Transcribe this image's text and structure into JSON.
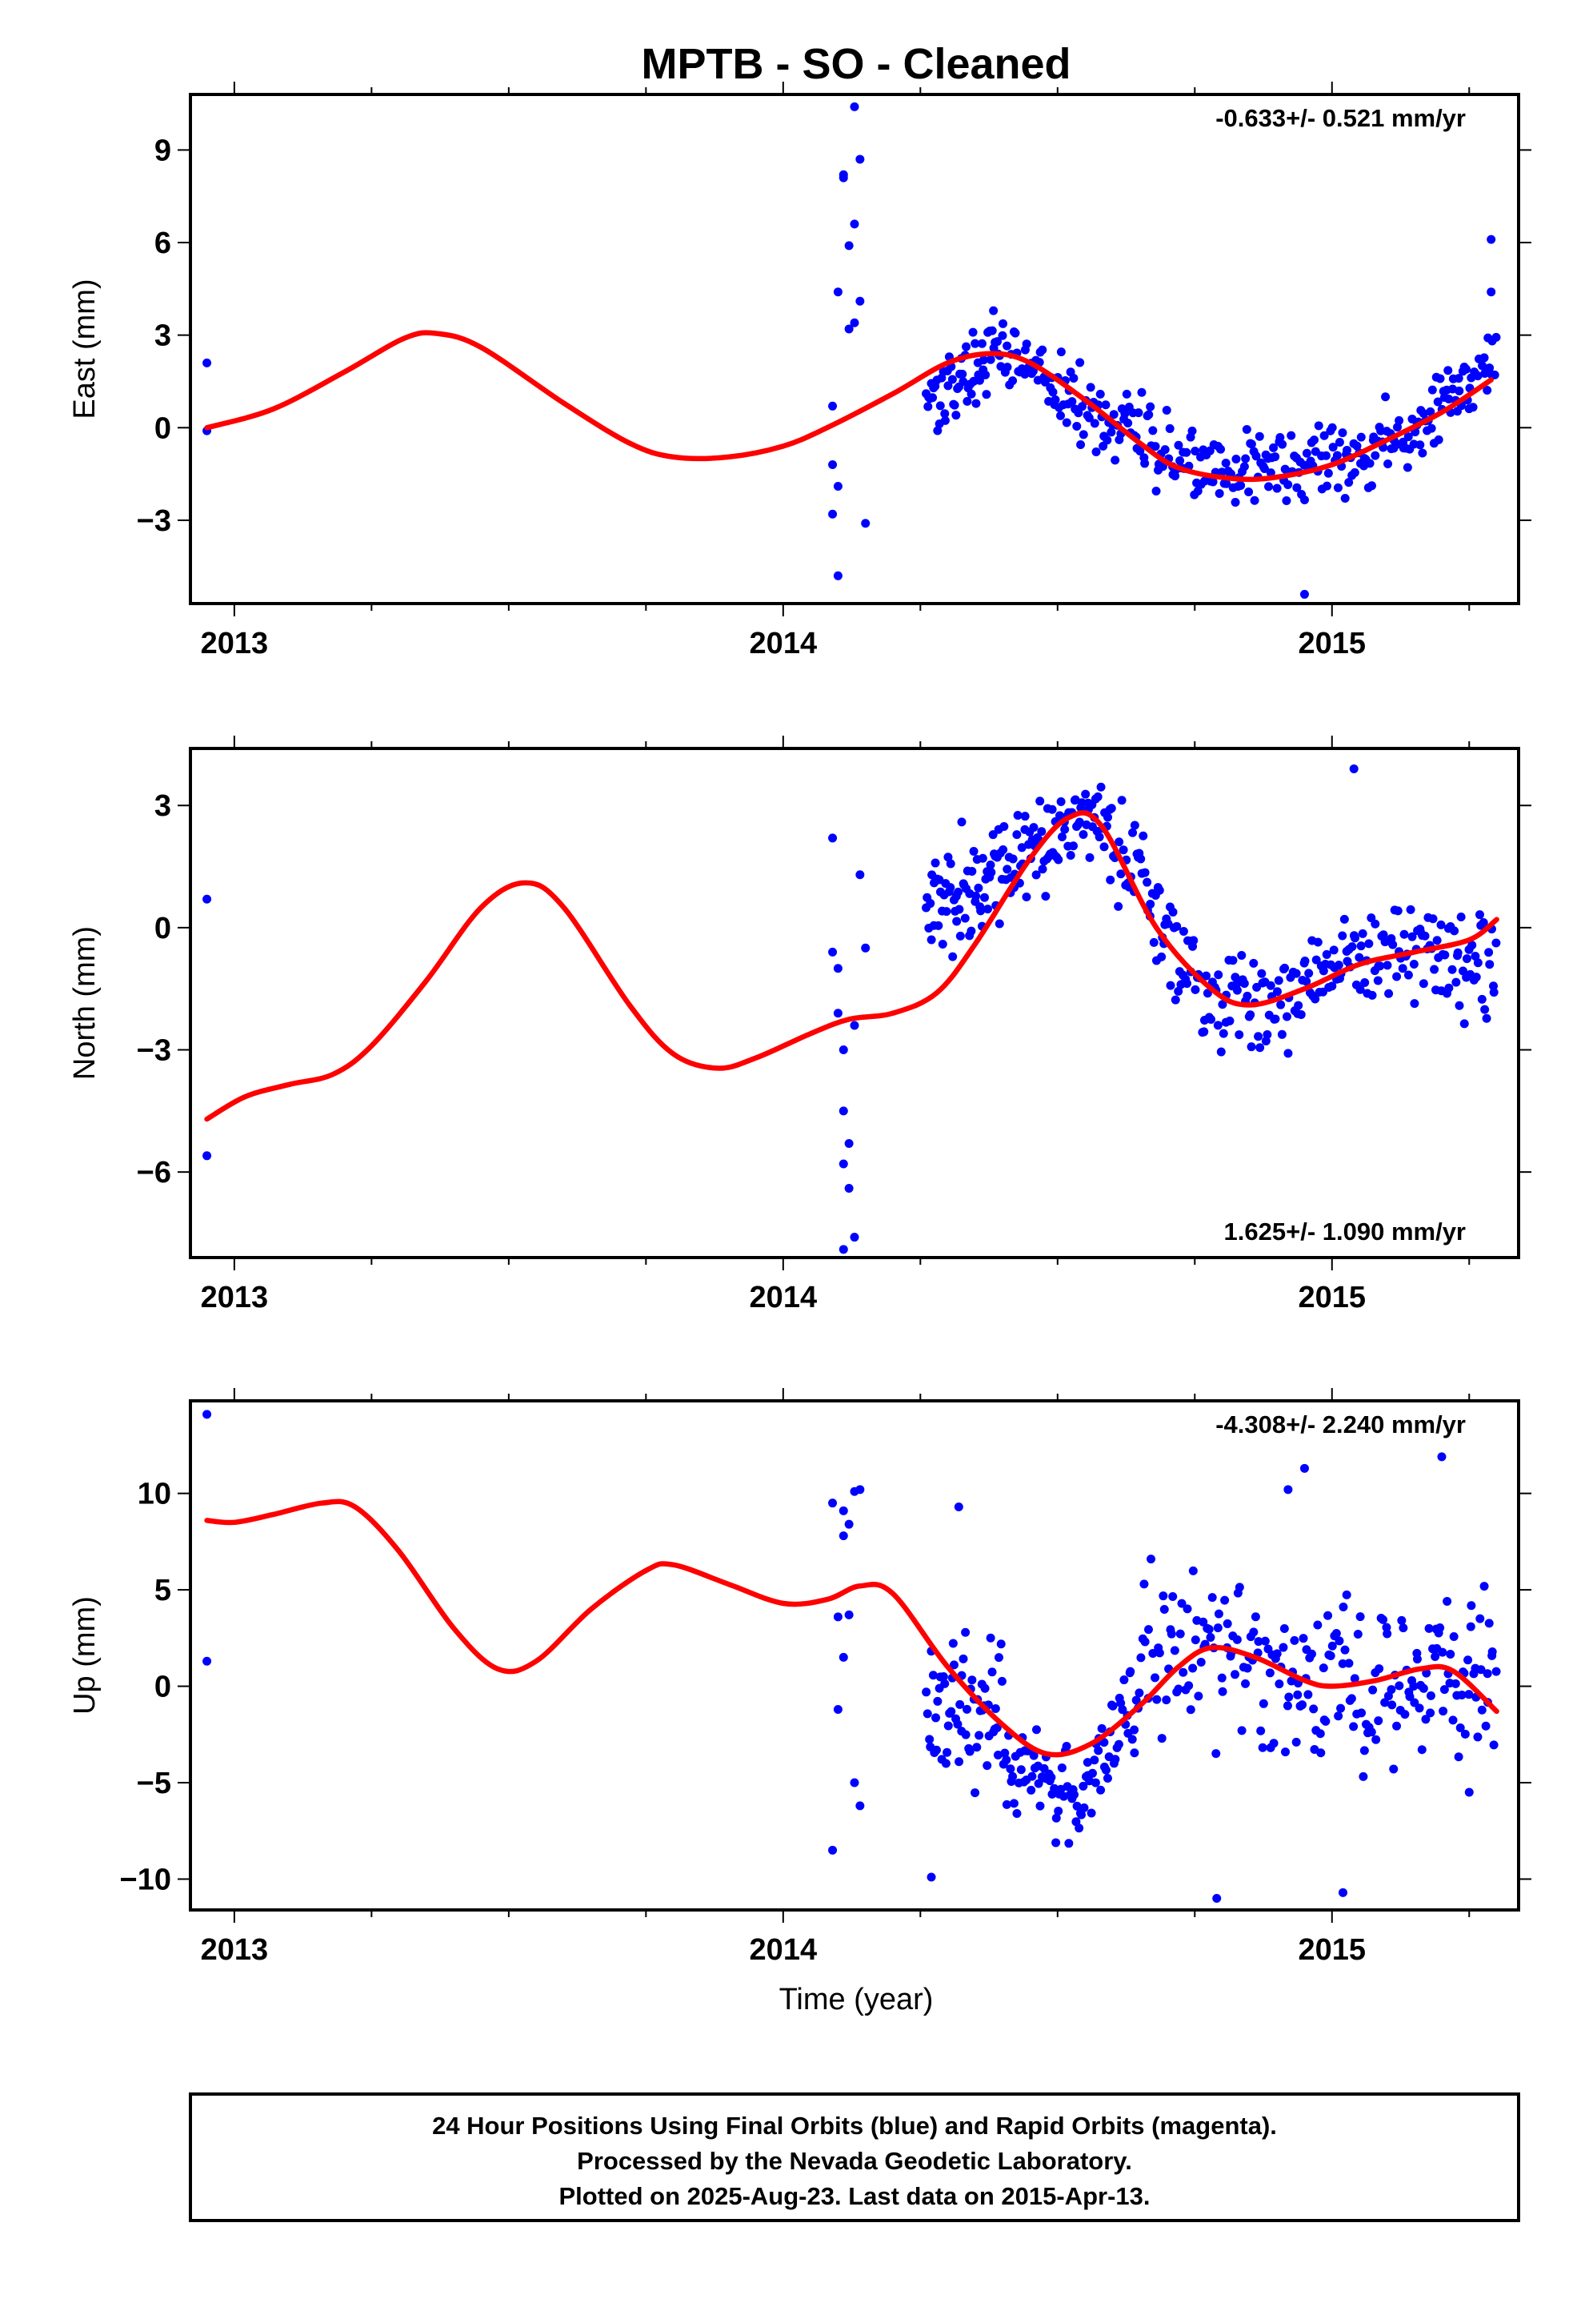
{
  "title": "MPTB  - SO - Cleaned",
  "colors": {
    "data": "#0000ff",
    "fit": "#ff0000",
    "frame": "#000000"
  },
  "xlabel": "Time (year)",
  "footer": {
    "line1": "24 Hour Positions Using Final Orbits (blue) and Rapid Orbits (magenta).",
    "line2": "Processed by the Nevada Geodetic Laboratory.",
    "line3": "Plotted on 2025-Aug-23. Last data on 2015-Apr-13."
  },
  "chart_data": [
    {
      "type": "scatter",
      "name": "east",
      "ylabel": "East (mm)",
      "rate": "-0.633+/- 0.521 mm/yr",
      "rate_position": "top-right",
      "xlim": [
        2012.92,
        2015.34
      ],
      "ylim": [
        -5.7,
        10.8
      ],
      "x_ticks": [
        2013,
        2014,
        2015
      ],
      "x_tick_labels": [
        "2013",
        "2014",
        "2015"
      ],
      "y_ticks": [
        9,
        6,
        3,
        0,
        -3
      ],
      "y_tick_labels": [
        "9",
        "6",
        "3",
        "0",
        "−3"
      ],
      "outliers": [
        [
          2012.95,
          2.1
        ],
        [
          2012.95,
          -0.1
        ],
        [
          2014.09,
          0.7
        ],
        [
          2014.09,
          -1.2
        ],
        [
          2014.1,
          -1.9
        ],
        [
          2014.09,
          -2.8
        ],
        [
          2014.1,
          -4.8
        ],
        [
          2014.1,
          4.4
        ],
        [
          2014.11,
          8.1
        ],
        [
          2014.11,
          8.2
        ],
        [
          2014.12,
          5.9
        ],
        [
          2014.12,
          3.2
        ],
        [
          2014.13,
          3.4
        ],
        [
          2014.13,
          6.6
        ],
        [
          2014.14,
          8.7
        ],
        [
          2014.13,
          10.4
        ],
        [
          2014.14,
          4.1
        ],
        [
          2014.15,
          -3.1
        ],
        [
          2015.29,
          6.1
        ],
        [
          2015.29,
          4.4
        ],
        [
          2014.95,
          -5.4
        ]
      ],
      "fit_knots": [
        [
          2012.95,
          0.0
        ],
        [
          2013.07,
          0.6
        ],
        [
          2013.2,
          1.8
        ],
        [
          2013.31,
          2.9
        ],
        [
          2013.37,
          3.05
        ],
        [
          2013.45,
          2.6
        ],
        [
          2013.6,
          0.8
        ],
        [
          2013.72,
          -0.5
        ],
        [
          2013.8,
          -0.95
        ],
        [
          2013.9,
          -0.95
        ],
        [
          2014.0,
          -0.6
        ],
        [
          2014.08,
          0.0
        ],
        [
          2014.2,
          1.1
        ],
        [
          2014.3,
          2.1
        ],
        [
          2014.38,
          2.4
        ],
        [
          2014.45,
          2.1
        ],
        [
          2014.55,
          0.9
        ],
        [
          2014.65,
          -0.5
        ],
        [
          2014.72,
          -1.3
        ],
        [
          2014.82,
          -1.65
        ],
        [
          2014.9,
          -1.6
        ],
        [
          2015.0,
          -1.2
        ],
        [
          2015.1,
          -0.4
        ],
        [
          2015.2,
          0.5
        ],
        [
          2015.29,
          1.55
        ]
      ],
      "dense_segments": [
        {
          "x0": 2014.26,
          "x1": 2014.4,
          "from": 1.0,
          "to": 2.6,
          "spread": 1.2,
          "n": 60
        },
        {
          "x0": 2014.4,
          "x1": 2014.55,
          "from": 2.6,
          "to": 0.6,
          "spread": 1.1,
          "n": 55
        },
        {
          "x0": 2014.55,
          "x1": 2014.75,
          "from": 0.6,
          "to": -1.3,
          "spread": 1.2,
          "n": 70
        },
        {
          "x0": 2014.75,
          "x1": 2014.95,
          "from": -1.3,
          "to": -1.4,
          "spread": 1.1,
          "n": 70
        },
        {
          "x0": 2014.95,
          "x1": 2015.15,
          "from": -1.4,
          "to": -0.2,
          "spread": 1.1,
          "n": 70
        },
        {
          "x0": 2015.15,
          "x1": 2015.3,
          "from": -0.2,
          "to": 2.4,
          "spread": 1.1,
          "n": 55
        }
      ]
    },
    {
      "type": "scatter",
      "name": "north",
      "ylabel": "North (mm)",
      "rate": "1.625+/- 1.090 mm/yr",
      "rate_position": "bottom-right",
      "xlim": [
        2012.92,
        2015.34
      ],
      "ylim": [
        -8.1,
        4.4
      ],
      "x_ticks": [
        2013,
        2014,
        2015
      ],
      "x_tick_labels": [
        "2013",
        "2014",
        "2015"
      ],
      "y_ticks": [
        3,
        0,
        -3,
        -6
      ],
      "y_tick_labels": [
        "3",
        "0",
        "−3",
        "−6"
      ],
      "outliers": [
        [
          2012.95,
          0.7
        ],
        [
          2012.95,
          -5.6
        ],
        [
          2014.09,
          2.2
        ],
        [
          2014.09,
          -0.6
        ],
        [
          2014.1,
          -1.0
        ],
        [
          2014.1,
          -2.1
        ],
        [
          2014.11,
          -3.0
        ],
        [
          2014.11,
          -4.5
        ],
        [
          2014.12,
          -5.3
        ],
        [
          2014.11,
          -5.8
        ],
        [
          2014.12,
          -6.4
        ],
        [
          2014.11,
          -7.9
        ],
        [
          2014.13,
          -7.6
        ],
        [
          2014.13,
          -2.4
        ],
        [
          2014.14,
          1.3
        ],
        [
          2014.15,
          -0.5
        ],
        [
          2015.04,
          3.9
        ]
      ],
      "fit_knots": [
        [
          2012.95,
          -4.7
        ],
        [
          2013.02,
          -4.15
        ],
        [
          2013.1,
          -3.85
        ],
        [
          2013.18,
          -3.6
        ],
        [
          2013.25,
          -2.9
        ],
        [
          2013.35,
          -1.3
        ],
        [
          2013.45,
          0.5
        ],
        [
          2013.53,
          1.1
        ],
        [
          2013.6,
          0.5
        ],
        [
          2013.72,
          -1.9
        ],
        [
          2013.8,
          -3.1
        ],
        [
          2013.88,
          -3.45
        ],
        [
          2013.95,
          -3.2
        ],
        [
          2014.05,
          -2.6
        ],
        [
          2014.12,
          -2.25
        ],
        [
          2014.2,
          -2.1
        ],
        [
          2014.28,
          -1.6
        ],
        [
          2014.35,
          -0.4
        ],
        [
          2014.45,
          1.7
        ],
        [
          2014.52,
          2.7
        ],
        [
          2014.58,
          2.5
        ],
        [
          2014.68,
          0.0
        ],
        [
          2014.78,
          -1.5
        ],
        [
          2014.85,
          -1.9
        ],
        [
          2014.95,
          -1.5
        ],
        [
          2015.05,
          -0.9
        ],
        [
          2015.15,
          -0.6
        ],
        [
          2015.25,
          -0.3
        ],
        [
          2015.3,
          0.2
        ]
      ],
      "dense_segments": [
        {
          "x0": 2014.26,
          "x1": 2014.4,
          "from": 0.3,
          "to": 1.5,
          "spread": 1.3,
          "n": 65
        },
        {
          "x0": 2014.4,
          "x1": 2014.58,
          "from": 1.5,
          "to": 3.0,
          "spread": 1.0,
          "n": 75
        },
        {
          "x0": 2014.58,
          "x1": 2014.75,
          "from": 2.5,
          "to": -1.0,
          "spread": 1.2,
          "n": 65
        },
        {
          "x0": 2014.75,
          "x1": 2014.95,
          "from": -1.5,
          "to": -1.7,
          "spread": 1.1,
          "n": 70
        },
        {
          "x0": 2014.95,
          "x1": 2015.15,
          "from": -1.2,
          "to": -0.3,
          "spread": 1.1,
          "n": 70
        },
        {
          "x0": 2015.15,
          "x1": 2015.3,
          "from": -0.6,
          "to": -1.2,
          "spread": 1.2,
          "n": 55
        }
      ]
    },
    {
      "type": "scatter",
      "name": "up",
      "ylabel": "Up (mm)",
      "rate": "-4.308+/- 2.240 mm/yr",
      "rate_position": "top-right",
      "xlim": [
        2012.92,
        2015.34
      ],
      "ylim": [
        -11.6,
        14.8
      ],
      "x_ticks": [
        2013,
        2014,
        2015
      ],
      "x_tick_labels": [
        "2013",
        "2014",
        "2015"
      ],
      "y_ticks": [
        10,
        5,
        0,
        -5,
        -10
      ],
      "y_tick_labels": [
        "10",
        "5",
        "0",
        "−5",
        "−10"
      ],
      "outliers": [
        [
          2012.95,
          14.1
        ],
        [
          2012.95,
          1.3
        ],
        [
          2014.09,
          9.5
        ],
        [
          2014.09,
          -8.5
        ],
        [
          2014.1,
          -1.2
        ],
        [
          2014.1,
          3.6
        ],
        [
          2014.11,
          7.8
        ],
        [
          2014.11,
          9.1
        ],
        [
          2014.12,
          8.4
        ],
        [
          2014.12,
          3.7
        ],
        [
          2014.13,
          10.1
        ],
        [
          2014.14,
          10.2
        ],
        [
          2014.13,
          -5.0
        ],
        [
          2014.14,
          -6.2
        ],
        [
          2014.11,
          1.5
        ],
        [
          2014.79,
          -11.0
        ],
        [
          2015.02,
          -10.7
        ],
        [
          2014.92,
          10.2
        ],
        [
          2014.95,
          11.3
        ],
        [
          2015.2,
          11.9
        ],
        [
          2014.27,
          -9.9
        ],
        [
          2014.32,
          9.3
        ],
        [
          2015.25,
          -5.5
        ]
      ],
      "fit_knots": [
        [
          2012.95,
          8.6
        ],
        [
          2013.0,
          8.5
        ],
        [
          2013.07,
          8.9
        ],
        [
          2013.16,
          9.5
        ],
        [
          2013.22,
          9.3
        ],
        [
          2013.3,
          7.0
        ],
        [
          2013.4,
          3.0
        ],
        [
          2013.48,
          0.9
        ],
        [
          2013.55,
          1.3
        ],
        [
          2013.65,
          4.0
        ],
        [
          2013.75,
          6.0
        ],
        [
          2013.8,
          6.3
        ],
        [
          2013.9,
          5.3
        ],
        [
          2014.0,
          4.3
        ],
        [
          2014.08,
          4.5
        ],
        [
          2014.14,
          5.2
        ],
        [
          2014.2,
          4.8
        ],
        [
          2014.3,
          1.0
        ],
        [
          2014.4,
          -2.0
        ],
        [
          2014.48,
          -3.5
        ],
        [
          2014.56,
          -3.0
        ],
        [
          2014.65,
          -1.0
        ],
        [
          2014.72,
          1.0
        ],
        [
          2014.78,
          2.0
        ],
        [
          2014.86,
          1.5
        ],
        [
          2014.95,
          0.3
        ],
        [
          2015.0,
          0.0
        ],
        [
          2015.08,
          0.3
        ],
        [
          2015.16,
          0.9
        ],
        [
          2015.22,
          0.8
        ],
        [
          2015.3,
          -1.3
        ]
      ],
      "dense_segments": [
        {
          "x0": 2014.26,
          "x1": 2014.4,
          "from": -1.0,
          "to": -1.5,
          "spread": 3.5,
          "n": 60
        },
        {
          "x0": 2014.4,
          "x1": 2014.55,
          "from": -3.5,
          "to": -6.0,
          "spread": 2.3,
          "n": 60
        },
        {
          "x0": 2014.55,
          "x1": 2014.65,
          "from": -4.0,
          "to": -1.0,
          "spread": 2.5,
          "n": 40
        },
        {
          "x0": 2014.65,
          "x1": 2014.9,
          "from": 2.0,
          "to": 1.0,
          "spread": 4.0,
          "n": 80
        },
        {
          "x0": 2014.9,
          "x1": 2015.15,
          "from": 0.0,
          "to": 0.5,
          "spread": 4.3,
          "n": 85
        },
        {
          "x0": 2015.15,
          "x1": 2015.3,
          "from": 1.0,
          "to": 0.0,
          "spread": 4.5,
          "n": 55
        }
      ]
    }
  ]
}
